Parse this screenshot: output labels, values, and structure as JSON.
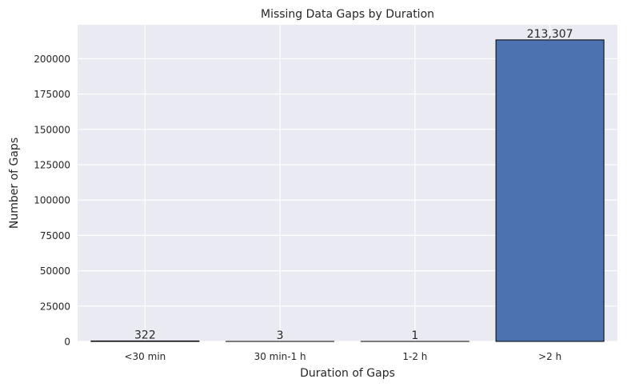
{
  "chart_data": {
    "type": "bar",
    "title": "Missing Data Gaps by Duration",
    "xlabel": "Duration of Gaps",
    "ylabel": "Number of Gaps",
    "categories": [
      "<30 min",
      "30 min-1 h",
      "1-2 h",
      ">2 h"
    ],
    "values": [
      322,
      3,
      1,
      213307
    ],
    "value_labels": [
      "322",
      "3",
      "1",
      "213,307"
    ],
    "ylim": [
      0,
      224000
    ],
    "yticks": [
      0,
      25000,
      50000,
      75000,
      100000,
      125000,
      150000,
      175000,
      200000
    ],
    "ytick_labels": [
      "0",
      "25000",
      "50000",
      "75000",
      "100000",
      "125000",
      "150000",
      "175000",
      "200000"
    ],
    "grid": true,
    "colors": {
      "bar_fill": "#4c72b0",
      "bar_edge": "#000000",
      "plot_background": "#eaeaf2",
      "grid": "#ffffff",
      "text": "#262626"
    }
  }
}
